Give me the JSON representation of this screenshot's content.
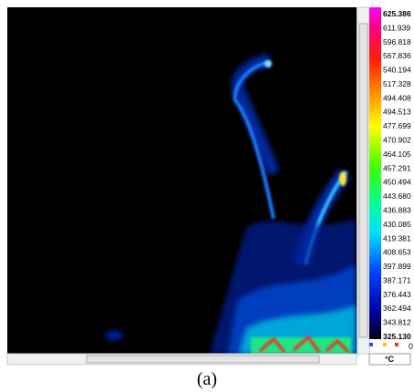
{
  "scale": {
    "labels": [
      "625.386",
      "611.939",
      "596.818",
      "567.836",
      "540.194",
      "517.328",
      "494.408",
      "494.513",
      "477.699",
      "470.902",
      "464.105",
      "457.291",
      "450.494",
      "443.680",
      "436.883",
      "430.085",
      "419.381",
      "408.653",
      "397.899",
      "387.171",
      "376.443",
      "362.494",
      "343.812",
      "325.130"
    ],
    "unit": "°C",
    "marker": "0"
  },
  "caption": "(a)"
}
